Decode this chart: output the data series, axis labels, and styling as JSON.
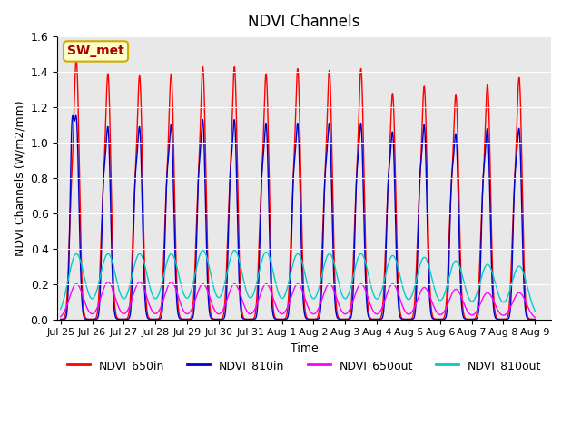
{
  "title": "NDVI Channels",
  "xlabel": "Time",
  "ylabel": "NDVI Channels (W/m2/mm)",
  "ylim": [
    0.0,
    1.6
  ],
  "yticks": [
    0.0,
    0.2,
    0.4,
    0.6,
    0.8,
    1.0,
    1.2,
    1.4,
    1.6
  ],
  "xtick_labels": [
    "Jul 25",
    "Jul 26",
    "Jul 27",
    "Jul 28",
    "Jul 29",
    "Jul 30",
    "Jul 31",
    "Aug 1",
    "Aug 2",
    "Aug 3",
    "Aug 4",
    "Aug 5",
    "Aug 6",
    "Aug 7",
    "Aug 8",
    "Aug 9"
  ],
  "annotation_text": "SW_met",
  "annotation_bg": "#FFFFCC",
  "annotation_border": "#CCAA00",
  "annotation_text_color": "#AA0000",
  "colors": {
    "NDVI_650in": "#FF0000",
    "NDVI_810in": "#0000CC",
    "NDVI_650out": "#FF00FF",
    "NDVI_810out": "#00CCCC"
  },
  "peak_650in": [
    1.45,
    1.37,
    1.36,
    1.37,
    1.41,
    1.41,
    1.37,
    1.4,
    1.39,
    1.4,
    1.26,
    1.3,
    1.25,
    1.31,
    1.35
  ],
  "peak_810in": [
    1.1,
    1.06,
    1.06,
    1.07,
    1.1,
    1.1,
    1.08,
    1.08,
    1.08,
    1.08,
    1.03,
    1.07,
    1.02,
    1.05,
    1.05
  ],
  "peak_650out": [
    0.2,
    0.21,
    0.21,
    0.21,
    0.2,
    0.2,
    0.2,
    0.2,
    0.2,
    0.2,
    0.2,
    0.18,
    0.17,
    0.15,
    0.15
  ],
  "peak_810out": [
    0.37,
    0.37,
    0.37,
    0.37,
    0.39,
    0.39,
    0.38,
    0.37,
    0.37,
    0.37,
    0.36,
    0.35,
    0.33,
    0.31,
    0.3
  ],
  "subpeak_650in": [
    0.48,
    0.46,
    0.46,
    0.46,
    0.46,
    0.46,
    0.46,
    0.46,
    0.46,
    0.46,
    0.46,
    0.46,
    0.46,
    0.46,
    0.46
  ],
  "subpeak_810in": [
    0.9,
    0.58,
    0.58,
    0.58,
    0.58,
    0.58,
    0.58,
    0.58,
    0.58,
    0.58,
    0.58,
    0.58,
    0.58,
    0.58,
    0.58
  ],
  "num_days": 15,
  "bg_color": "#E8E8E8",
  "grid_color": "#FFFFFF"
}
